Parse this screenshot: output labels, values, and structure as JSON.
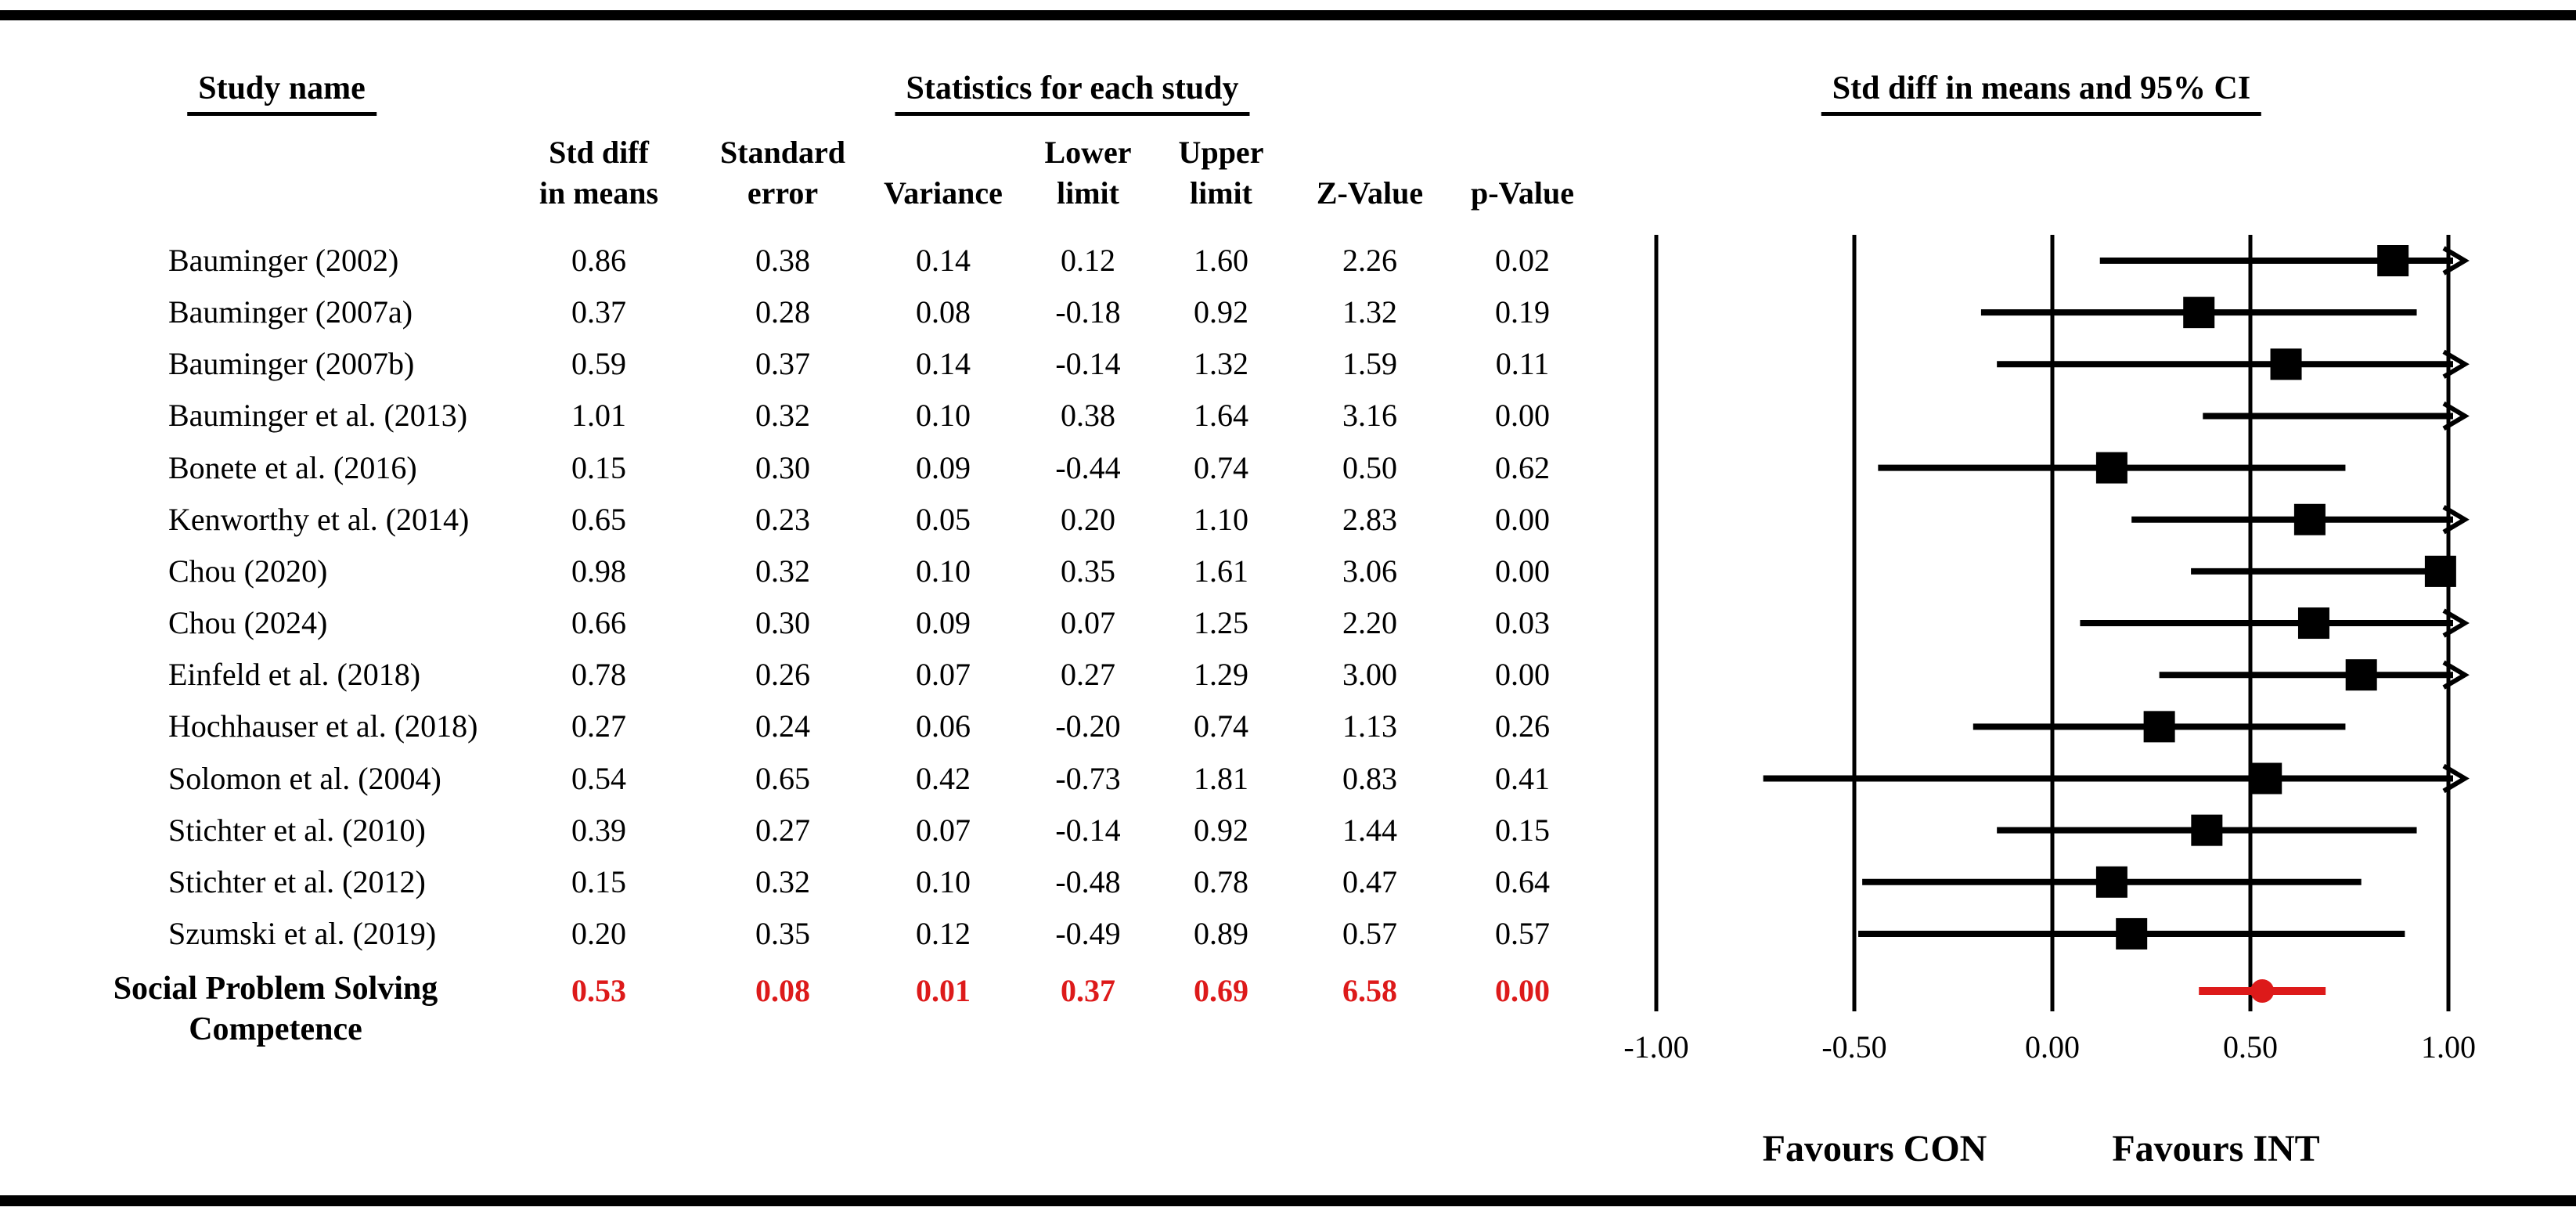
{
  "header": {
    "study_name_title": "Study name",
    "stats_title": "Statistics for each study",
    "plot_title": "Std diff in means and 95% CI"
  },
  "columns": {
    "std_diff": "Std diff\nin means",
    "std_err": "Standard\nerror",
    "variance": "Variance",
    "lower": "Lower\nlimit",
    "upper": "Upper\nlimit",
    "z": "Z-Value",
    "p": "p-Value"
  },
  "chart_data": {
    "type": "forest",
    "title": "Std diff in means and 95% CI",
    "x_axis": {
      "range": [
        -1.0,
        1.0
      ],
      "ticks": [
        {
          "value": -1.0,
          "label": "-1.00"
        },
        {
          "value": -0.5,
          "label": "-0.50"
        },
        {
          "value": 0.0,
          "label": "0.00"
        },
        {
          "value": 0.5,
          "label": "0.50"
        },
        {
          "value": 1.0,
          "label": "1.00"
        }
      ]
    },
    "favours": {
      "left": "Favours CON",
      "right": "Favours INT"
    },
    "colors": {
      "data": "#000000",
      "summary": "#dd1a1a"
    },
    "studies": [
      {
        "name": "Bauminger (2002)",
        "std_diff": "0.86",
        "std_err": "0.38",
        "variance": "0.14",
        "lower": "0.12",
        "upper": "1.60",
        "z": "2.26",
        "p": "0.02",
        "arrow": true,
        "square": true
      },
      {
        "name": "Bauminger (2007a)",
        "std_diff": "0.37",
        "std_err": "0.28",
        "variance": "0.08",
        "lower": "-0.18",
        "upper": "0.92",
        "z": "1.32",
        "p": "0.19",
        "arrow": false,
        "square": true
      },
      {
        "name": "Bauminger (2007b)",
        "std_diff": "0.59",
        "std_err": "0.37",
        "variance": "0.14",
        "lower": "-0.14",
        "upper": "1.32",
        "z": "1.59",
        "p": "0.11",
        "arrow": true,
        "square": true
      },
      {
        "name": "Bauminger et al. (2013)",
        "std_diff": "1.01",
        "std_err": "0.32",
        "variance": "0.10",
        "lower": "0.38",
        "upper": "1.64",
        "z": "3.16",
        "p": "0.00",
        "arrow": true,
        "square": false
      },
      {
        "name": "Bonete et al. (2016)",
        "std_diff": "0.15",
        "std_err": "0.30",
        "variance": "0.09",
        "lower": "-0.44",
        "upper": "0.74",
        "z": "0.50",
        "p": "0.62",
        "arrow": false,
        "square": true
      },
      {
        "name": "Kenworthy et al. (2014)",
        "std_diff": "0.65",
        "std_err": "0.23",
        "variance": "0.05",
        "lower": "0.20",
        "upper": "1.10",
        "z": "2.83",
        "p": "0.00",
        "arrow": true,
        "square": true
      },
      {
        "name": "Chou (2020)",
        "std_diff": "0.98",
        "std_err": "0.32",
        "variance": "0.10",
        "lower": "0.35",
        "upper": "1.61",
        "z": "3.06",
        "p": "0.00",
        "arrow": false,
        "square": true
      },
      {
        "name": "Chou (2024)",
        "std_diff": "0.66",
        "std_err": "0.30",
        "variance": "0.09",
        "lower": "0.07",
        "upper": "1.25",
        "z": "2.20",
        "p": "0.03",
        "arrow": true,
        "square": true
      },
      {
        "name": "Einfeld et al. (2018)",
        "std_diff": "0.78",
        "std_err": "0.26",
        "variance": "0.07",
        "lower": "0.27",
        "upper": "1.29",
        "z": "3.00",
        "p": "0.00",
        "arrow": true,
        "square": true
      },
      {
        "name": "Hochhauser et al. (2018)",
        "std_diff": "0.27",
        "std_err": "0.24",
        "variance": "0.06",
        "lower": "-0.20",
        "upper": "0.74",
        "z": "1.13",
        "p": "0.26",
        "arrow": false,
        "square": true
      },
      {
        "name": "Solomon et al. (2004)",
        "std_diff": "0.54",
        "std_err": "0.65",
        "variance": "0.42",
        "lower": "-0.73",
        "upper": "1.81",
        "z": "0.83",
        "p": "0.41",
        "arrow": true,
        "square": true
      },
      {
        "name": "Stichter et al. (2010)",
        "std_diff": "0.39",
        "std_err": "0.27",
        "variance": "0.07",
        "lower": "-0.14",
        "upper": "0.92",
        "z": "1.44",
        "p": "0.15",
        "arrow": false,
        "square": true
      },
      {
        "name": "Stichter et al. (2012)",
        "std_diff": "0.15",
        "std_err": "0.32",
        "variance": "0.10",
        "lower": "-0.48",
        "upper": "0.78",
        "z": "0.47",
        "p": "0.64",
        "arrow": false,
        "square": true
      },
      {
        "name": "Szumski et al. (2019)",
        "std_diff": "0.20",
        "std_err": "0.35",
        "variance": "0.12",
        "lower": "-0.49",
        "upper": "0.89",
        "z": "0.57",
        "p": "0.57",
        "arrow": false,
        "square": true
      }
    ],
    "summary": {
      "name": "Social Problem Solving\nCompetence",
      "std_diff": "0.53",
      "std_err": "0.08",
      "variance": "0.01",
      "lower": "0.37",
      "upper": "0.69",
      "z": "6.58",
      "p": "0.00"
    }
  }
}
